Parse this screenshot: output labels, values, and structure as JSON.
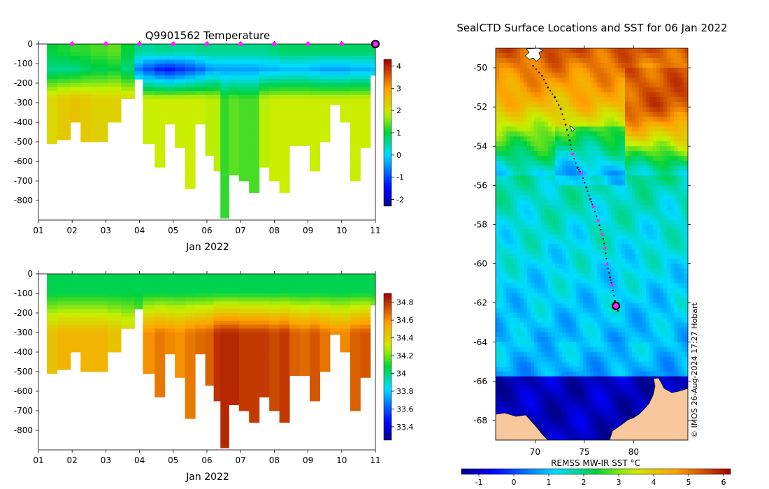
{
  "top_panel": {
    "title": "Q9901562  Temperature",
    "xlabel": "Jan 2022",
    "x_ticks": [
      "01",
      "02",
      "03",
      "04",
      "05",
      "06",
      "07",
      "08",
      "09",
      "10",
      "11"
    ],
    "y_ticks": [
      "0",
      "-100",
      "-200",
      "-300",
      "-400",
      "-500",
      "-600",
      "-700",
      "-800"
    ],
    "colorbar_ticks": [
      "4",
      "3",
      "2",
      "1",
      "0",
      "-1",
      "-2"
    ],
    "colorbar_range": [
      -2.3,
      4.3
    ]
  },
  "bottom_panel": {
    "title": "",
    "xlabel": "Jan 2022",
    "x_ticks": [
      "01",
      "02",
      "03",
      "04",
      "05",
      "06",
      "07",
      "08",
      "09",
      "10",
      "11"
    ],
    "y_ticks": [
      "0",
      "-100",
      "-200",
      "-300",
      "-400",
      "-500",
      "-600",
      "-700",
      "-800"
    ],
    "colorbar_ticks": [
      "34.8",
      "34.6",
      "34.4",
      "34.2",
      "34",
      "33.8",
      "33.6",
      "33.4"
    ],
    "colorbar_range": [
      33.25,
      34.9
    ]
  },
  "map": {
    "title": "SealCTD Surface Locations and SST for 06 Jan 2022",
    "x_ticks": [
      "70",
      "75",
      "80"
    ],
    "y_ticks": [
      "-50",
      "-52",
      "-54",
      "-56",
      "-58",
      "-60",
      "-62",
      "-64",
      "-66",
      "-68"
    ],
    "lon_range": [
      66,
      85.5
    ],
    "lat_range": [
      -69,
      -49
    ],
    "colorbar_label": "REMSS MW-IR SST °C",
    "colorbar_ticks": [
      "-1",
      "0",
      "1",
      "2",
      "3",
      "4",
      "5",
      "6"
    ],
    "colorbar_range": [
      -1.5,
      6.2
    ],
    "credit": "© IMOS 26-Aug-2024 17:27 Hobart"
  },
  "chart_data": [
    {
      "type": "heatmap",
      "title": "Q9901562  Temperature",
      "xlabel": "Jan 2022",
      "ylabel": "",
      "xlim": [
        1,
        11
      ],
      "ylim": [
        -900,
        0
      ],
      "value_range": [
        -2.3,
        4.3
      ],
      "profiles": [
        {
          "day": 1.25,
          "max_depth": 510,
          "surf_temp": 1.0,
          "min_temp": 0.6,
          "deep_temp": 2.2
        },
        {
          "day": 1.55,
          "max_depth": 490,
          "surf_temp": 1.1,
          "min_temp": 0.6,
          "deep_temp": 2.4
        },
        {
          "day": 1.95,
          "max_depth": 400,
          "surf_temp": 1.2,
          "min_temp": 0.6,
          "deep_temp": 2.5
        },
        {
          "day": 2.25,
          "max_depth": 500,
          "surf_temp": 1.2,
          "min_temp": 0.8,
          "deep_temp": 2.4
        },
        {
          "day": 2.55,
          "max_depth": 500,
          "surf_temp": 1.3,
          "min_temp": 0.9,
          "deep_temp": 2.3
        },
        {
          "day": 3.05,
          "max_depth": 400,
          "surf_temp": 1.4,
          "min_temp": 1.0,
          "deep_temp": 2.3
        },
        {
          "day": 3.45,
          "max_depth": 280,
          "surf_temp": 1.0,
          "min_temp": 0.7,
          "deep_temp": 2.2
        },
        {
          "day": 3.85,
          "max_depth": 180,
          "surf_temp": 0.6,
          "min_temp": -0.6,
          "deep_temp": 1.8
        },
        {
          "day": 4.1,
          "max_depth": 510,
          "surf_temp": 0.5,
          "min_temp": -1.0,
          "deep_temp": 1.9
        },
        {
          "day": 4.45,
          "max_depth": 630,
          "surf_temp": 0.6,
          "min_temp": -1.3,
          "deep_temp": 1.9
        },
        {
          "day": 4.75,
          "max_depth": 410,
          "surf_temp": 0.6,
          "min_temp": -1.4,
          "deep_temp": 1.9
        },
        {
          "day": 5.05,
          "max_depth": 530,
          "surf_temp": 0.5,
          "min_temp": -1.2,
          "deep_temp": 1.9
        },
        {
          "day": 5.35,
          "max_depth": 740,
          "surf_temp": 0.5,
          "min_temp": -1.0,
          "deep_temp": 1.9
        },
        {
          "day": 5.65,
          "max_depth": 410,
          "surf_temp": 0.6,
          "min_temp": -0.8,
          "deep_temp": 1.9
        },
        {
          "day": 5.95,
          "max_depth": 570,
          "surf_temp": 0.6,
          "min_temp": -0.5,
          "deep_temp": 1.8
        },
        {
          "day": 6.2,
          "max_depth": 650,
          "surf_temp": 0.6,
          "min_temp": -0.4,
          "deep_temp": 1.8
        },
        {
          "day": 6.4,
          "max_depth": 890,
          "surf_temp": 0.6,
          "min_temp": -0.4,
          "deep_temp": 1.2
        },
        {
          "day": 6.65,
          "max_depth": 670,
          "surf_temp": 0.6,
          "min_temp": -0.4,
          "deep_temp": 1.4
        },
        {
          "day": 6.95,
          "max_depth": 700,
          "surf_temp": 0.6,
          "min_temp": -0.4,
          "deep_temp": 1.3
        },
        {
          "day": 7.25,
          "max_depth": 760,
          "surf_temp": 0.6,
          "min_temp": -0.4,
          "deep_temp": 1.3
        },
        {
          "day": 7.55,
          "max_depth": 630,
          "surf_temp": 0.6,
          "min_temp": -0.3,
          "deep_temp": 1.8
        },
        {
          "day": 7.85,
          "max_depth": 700,
          "surf_temp": 0.7,
          "min_temp": -0.3,
          "deep_temp": 1.9
        },
        {
          "day": 8.15,
          "max_depth": 760,
          "surf_temp": 0.8,
          "min_temp": -0.2,
          "deep_temp": 1.9
        },
        {
          "day": 8.45,
          "max_depth": 520,
          "surf_temp": 0.8,
          "min_temp": -0.2,
          "deep_temp": 1.9
        },
        {
          "day": 8.75,
          "max_depth": 520,
          "surf_temp": 0.8,
          "min_temp": -0.2,
          "deep_temp": 1.9
        },
        {
          "day": 9.05,
          "max_depth": 650,
          "surf_temp": 0.8,
          "min_temp": -0.3,
          "deep_temp": 1.9
        },
        {
          "day": 9.35,
          "max_depth": 500,
          "surf_temp": 0.8,
          "min_temp": -0.4,
          "deep_temp": 1.9
        },
        {
          "day": 9.65,
          "max_depth": 310,
          "surf_temp": 0.8,
          "min_temp": -0.4,
          "deep_temp": 1.9
        },
        {
          "day": 9.95,
          "max_depth": 400,
          "surf_temp": 0.8,
          "min_temp": -0.4,
          "deep_temp": 1.9
        },
        {
          "day": 10.25,
          "max_depth": 700,
          "surf_temp": 0.8,
          "min_temp": -0.3,
          "deep_temp": 1.9
        },
        {
          "day": 10.55,
          "max_depth": 530,
          "surf_temp": 0.8,
          "min_temp": -0.3,
          "deep_temp": 1.9
        },
        {
          "day": 10.85,
          "max_depth": 160,
          "surf_temp": 0.8,
          "min_temp": -0.2,
          "deep_temp": 1.9
        }
      ],
      "surface_markers_days": [
        2,
        3,
        4,
        5,
        6,
        7,
        8,
        9,
        10
      ],
      "latest_marker_day": 11
    },
    {
      "type": "heatmap",
      "title": "",
      "xlabel": "Jan 2022",
      "ylabel": "",
      "xlim": [
        1,
        11
      ],
      "ylim": [
        -900,
        0
      ],
      "value_range": [
        33.25,
        34.9
      ],
      "profiles_ref": "same profile days and depths as temperature panel",
      "surface_salinity": 34.05,
      "deep_salinity_by_day": [
        {
          "day": 1.25,
          "value": 34.45
        },
        {
          "day": 1.55,
          "value": 34.5
        },
        {
          "day": 1.95,
          "value": 34.5
        },
        {
          "day": 2.25,
          "value": 34.5
        },
        {
          "day": 2.55,
          "value": 34.5
        },
        {
          "day": 3.05,
          "value": 34.45
        },
        {
          "day": 3.45,
          "value": 34.4
        },
        {
          "day": 3.85,
          "value": 34.3
        },
        {
          "day": 4.1,
          "value": 34.6
        },
        {
          "day": 4.45,
          "value": 34.65
        },
        {
          "day": 4.75,
          "value": 34.62
        },
        {
          "day": 5.05,
          "value": 34.6
        },
        {
          "day": 5.35,
          "value": 34.65
        },
        {
          "day": 5.65,
          "value": 34.68
        },
        {
          "day": 5.95,
          "value": 34.7
        },
        {
          "day": 6.2,
          "value": 34.8
        },
        {
          "day": 6.4,
          "value": 34.82
        },
        {
          "day": 6.65,
          "value": 34.82
        },
        {
          "day": 6.95,
          "value": 34.78
        },
        {
          "day": 7.25,
          "value": 34.78
        },
        {
          "day": 7.55,
          "value": 34.78
        },
        {
          "day": 7.85,
          "value": 34.75
        },
        {
          "day": 8.15,
          "value": 34.78
        },
        {
          "day": 8.45,
          "value": 34.7
        },
        {
          "day": 8.75,
          "value": 34.68
        },
        {
          "day": 9.05,
          "value": 34.72
        },
        {
          "day": 9.35,
          "value": 34.66
        },
        {
          "day": 9.65,
          "value": 34.62
        },
        {
          "day": 9.95,
          "value": 34.62
        },
        {
          "day": 10.25,
          "value": 34.7
        },
        {
          "day": 10.55,
          "value": 34.72
        },
        {
          "day": 10.85,
          "value": 34.6
        }
      ]
    },
    {
      "type": "scatter",
      "title": "SealCTD Surface Locations and SST for 06 Jan 2022",
      "xlabel": "",
      "ylabel": "",
      "xlim": [
        66,
        85.5
      ],
      "ylim": [
        -69,
        -49
      ],
      "track": [
        {
          "lon": 69.8,
          "lat": -49.9,
          "daily": false
        },
        {
          "lon": 70.7,
          "lat": -50.4,
          "daily": false
        },
        {
          "lon": 71.3,
          "lat": -51.0,
          "daily": false
        },
        {
          "lon": 72.0,
          "lat": -51.5,
          "daily": false
        },
        {
          "lon": 72.6,
          "lat": -52.1,
          "daily": false
        },
        {
          "lon": 73.1,
          "lat": -52.9,
          "daily": false
        },
        {
          "lon": 73.5,
          "lat": -53.7,
          "daily": false
        },
        {
          "lon": 73.8,
          "lat": -54.4,
          "daily": true
        },
        {
          "lon": 74.3,
          "lat": -55.1,
          "daily": false
        },
        {
          "lon": 74.7,
          "lat": -55.4,
          "daily": true
        },
        {
          "lon": 75.2,
          "lat": -56.1,
          "daily": false
        },
        {
          "lon": 75.6,
          "lat": -56.7,
          "daily": false
        },
        {
          "lon": 75.9,
          "lat": -57.1,
          "daily": true
        },
        {
          "lon": 76.4,
          "lat": -57.8,
          "daily": true
        },
        {
          "lon": 76.8,
          "lat": -58.5,
          "daily": true
        },
        {
          "lon": 77.1,
          "lat": -59.2,
          "daily": true
        },
        {
          "lon": 77.3,
          "lat": -60.0,
          "daily": true
        },
        {
          "lon": 77.6,
          "lat": -60.7,
          "daily": false
        },
        {
          "lon": 77.8,
          "lat": -61.1,
          "daily": true
        },
        {
          "lon": 78.1,
          "lat": -61.9,
          "daily": false
        },
        {
          "lon": 78.4,
          "lat": -62.4,
          "daily": false
        }
      ],
      "latest_position": {
        "lon": 78.2,
        "lat": -62.15
      },
      "sst_colorbar": {
        "label": "REMSS MW-IR SST °C",
        "range": [
          -1.5,
          6.2
        ]
      }
    }
  ]
}
